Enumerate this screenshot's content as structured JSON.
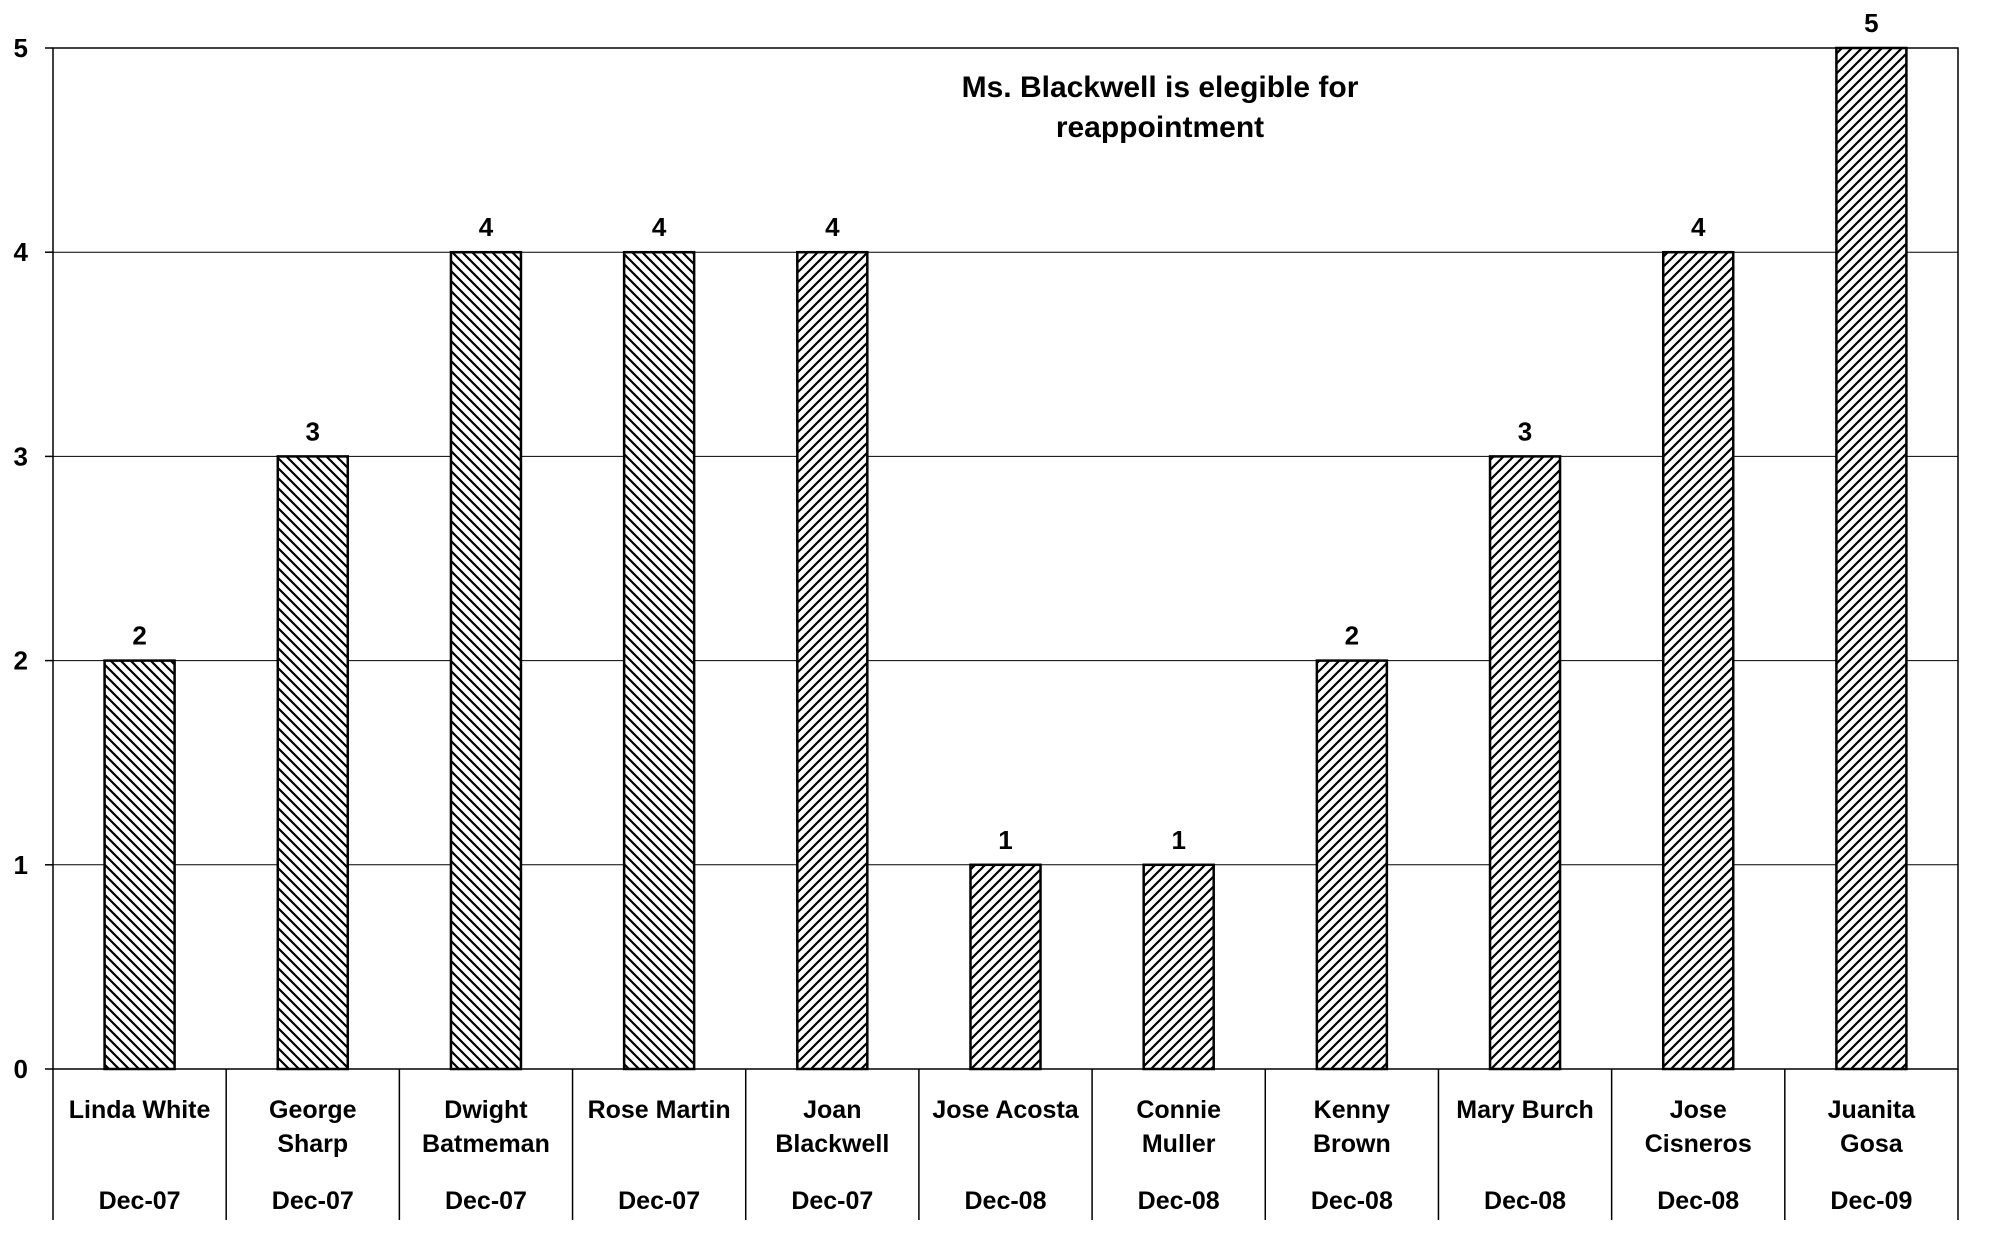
{
  "chart_data": {
    "type": "bar",
    "title": "",
    "xlabel": "",
    "ylabel": "",
    "ylim": [
      0,
      5
    ],
    "yticks": [
      0,
      1,
      2,
      3,
      4,
      5
    ],
    "grid": true,
    "legend": "none",
    "categories": [
      {
        "name": [
          "Linda White"
        ],
        "date": "Dec-07"
      },
      {
        "name": [
          "George",
          "Sharp"
        ],
        "date": "Dec-07"
      },
      {
        "name": [
          "Dwight",
          "Batmeman"
        ],
        "date": "Dec-07"
      },
      {
        "name": [
          "Rose Martin"
        ],
        "date": "Dec-07"
      },
      {
        "name": [
          "Joan",
          "Blackwell"
        ],
        "date": "Dec-07"
      },
      {
        "name": [
          "Jose Acosta"
        ],
        "date": "Dec-08"
      },
      {
        "name": [
          "Connie",
          "Muller"
        ],
        "date": "Dec-08"
      },
      {
        "name": [
          "Kenny",
          "Brown"
        ],
        "date": "Dec-08"
      },
      {
        "name": [
          "Mary Burch"
        ],
        "date": "Dec-08"
      },
      {
        "name": [
          "Jose",
          "Cisneros"
        ],
        "date": "Dec-08"
      },
      {
        "name": [
          "Juanita",
          "Gosa"
        ],
        "date": "Dec-09"
      }
    ],
    "values": [
      2,
      3,
      4,
      4,
      4,
      1,
      1,
      2,
      3,
      4,
      5
    ],
    "patterns": [
      "backslash",
      "backslash",
      "backslash",
      "backslash",
      "slash",
      "slash",
      "slash",
      "slash",
      "slash",
      "slash",
      "slash"
    ],
    "annotation": [
      "Ms. Blackwell is elegible for",
      "reappointment"
    ],
    "colors": {
      "bar_fill": "#ffffff",
      "hatch": "#000000",
      "grid": "#000000",
      "axis": "#000000"
    }
  }
}
